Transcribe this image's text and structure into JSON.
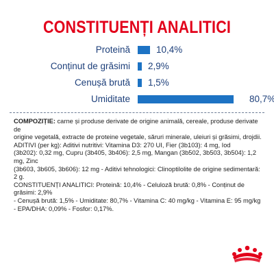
{
  "title": "CONSTITUENȚI ANALITICI",
  "colors": {
    "accent": "#e2001a",
    "bar": "#1d73c4",
    "label": "#1d3f7a"
  },
  "chart_data": {
    "type": "bar",
    "categories": [
      "Proteină",
      "Conținut de grăsimi",
      "Cenușă brută",
      "Umiditate"
    ],
    "values": [
      10.4,
      2.9,
      1.5,
      80.7
    ],
    "value_labels": [
      "10,4%",
      "2,9%",
      "1,5%",
      "80,7%"
    ]
  },
  "composition": {
    "lead": "COMPOZIȚIE:",
    "lines": [
      " carne și produse derivate de origine animală, cereale, produse derivate de",
      "origine vegetală, extracte de proteine vegetale, săruri minerale, uleiuri și grăsimi, drojdii.",
      "ADITIVI (per kg): Aditivi nutritivi: Vitamina D3: 270 UI, Fier (3b103): 4 mg, Iod",
      "(3b202): 0,32 mg, Cupru (3b405, 3b406): 2,5 mg, Mangan (3b502, 3b503, 3b504): 1,2 mg, Zinc",
      "(3b603, 3b605, 3b606): 12 mg - Aditivi tehnologici: Clinoptilolite de origine sedimentară: 2 g.",
      "CONSTITUENȚI ANALITICI: Proteină: 10,4% - Celuloză brută: 0,8% - Conținut de grăsimi: 2,9%",
      "- Cenușă brută: 1,5% - Umiditate: 80,7% - Vitamina C: 40 mg/kg - Vitamina E: 95 mg/kg",
      "- EPA/DHA: 0,09% - Fosfor: 0,17%."
    ]
  },
  "logo": {
    "icon": "royal-canin-crown-icon"
  }
}
